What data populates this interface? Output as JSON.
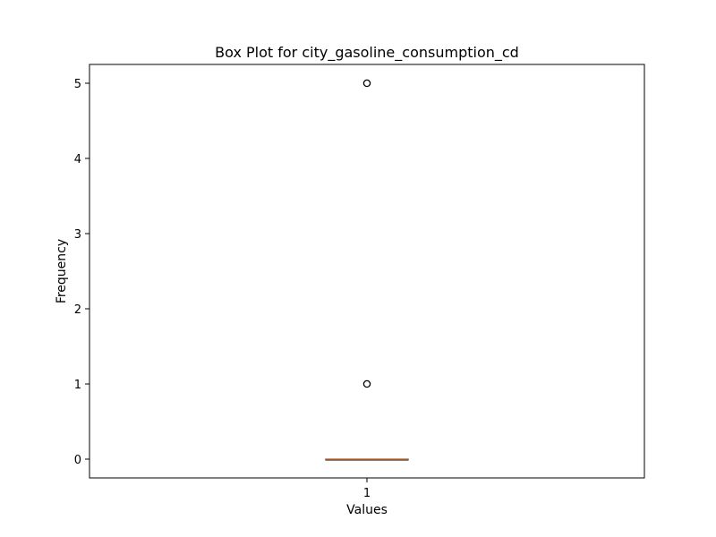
{
  "chart_data": {
    "type": "box",
    "title": "Box Plot for city_gasoline_consumption_cd",
    "xlabel": "Values",
    "ylabel": "Frequency",
    "categories": [
      "1"
    ],
    "ylim": [
      -0.25,
      5.25
    ],
    "yticks": [
      0,
      1,
      2,
      3,
      4,
      5
    ],
    "grid": false,
    "box": {
      "q1": 0,
      "median": 0,
      "q3": 0,
      "whisker_low": 0,
      "whisker_high": 0,
      "outliers": [
        1,
        5
      ]
    },
    "colors": {
      "box": "#000000",
      "median": "#c8763c",
      "outlier_edge": "#000000"
    }
  }
}
